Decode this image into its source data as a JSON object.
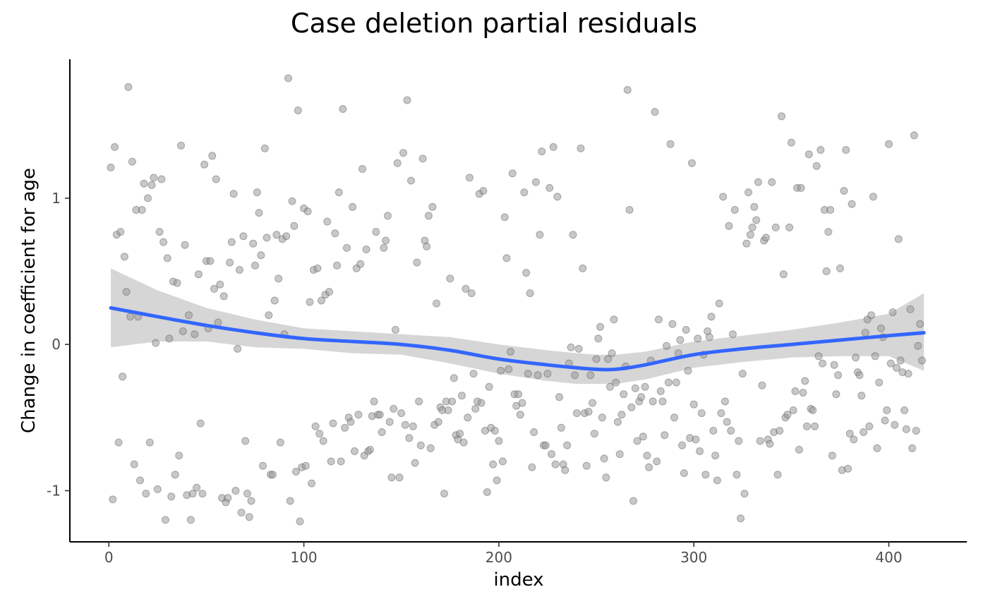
{
  "chart_data": {
    "type": "scatter",
    "title": "Case deletion partial residuals",
    "xlabel": "index",
    "ylabel": "Change in coefficient for age",
    "xlim": [
      -20,
      440
    ],
    "ylim": [
      -1.35,
      1.95
    ],
    "x_ticks": [
      0,
      100,
      200,
      300,
      400
    ],
    "y_ticks": [
      -1,
      0,
      1
    ],
    "x_tick_labels": [
      "0",
      "100",
      "200",
      "300",
      "400"
    ],
    "y_tick_labels": [
      "-1",
      "0",
      "1"
    ],
    "grid": false,
    "legend": "none",
    "point_color": "#808080",
    "smooth_color": "#3366FF",
    "band_color": "#999999",
    "points": [
      [
        1,
        1.21
      ],
      [
        2,
        -1.06
      ],
      [
        3,
        1.35
      ],
      [
        4,
        0.75
      ],
      [
        5,
        -0.67
      ],
      [
        6,
        0.77
      ],
      [
        7,
        -0.22
      ],
      [
        8,
        0.6
      ],
      [
        9,
        0.36
      ],
      [
        10,
        1.76
      ],
      [
        11,
        0.19
      ],
      [
        12,
        1.25
      ],
      [
        13,
        -0.82
      ],
      [
        14,
        0.92
      ],
      [
        15,
        0.19
      ],
      [
        16,
        -0.93
      ],
      [
        17,
        0.92
      ],
      [
        18,
        1.1
      ],
      [
        19,
        -1.02
      ],
      [
        20,
        1.0
      ],
      [
        21,
        -0.67
      ],
      [
        22,
        1.09
      ],
      [
        23,
        1.14
      ],
      [
        24,
        0.01
      ],
      [
        25,
        -0.99
      ],
      [
        26,
        0.77
      ],
      [
        27,
        1.13
      ],
      [
        28,
        0.7
      ],
      [
        29,
        -1.2
      ],
      [
        30,
        0.59
      ],
      [
        31,
        0.04
      ],
      [
        32,
        -1.04
      ],
      [
        33,
        0.43
      ],
      [
        34,
        -0.89
      ],
      [
        35,
        0.42
      ],
      [
        36,
        -0.76
      ],
      [
        37,
        1.36
      ],
      [
        38,
        0.09
      ],
      [
        39,
        0.68
      ],
      [
        40,
        -1.03
      ],
      [
        41,
        0.2
      ],
      [
        42,
        -1.2
      ],
      [
        43,
        -1.02
      ],
      [
        44,
        0.07
      ],
      [
        45,
        -0.98
      ],
      [
        46,
        0.48
      ],
      [
        47,
        -0.54
      ],
      [
        48,
        -1.02
      ],
      [
        49,
        1.23
      ],
      [
        50,
        0.57
      ],
      [
        51,
        0.11
      ],
      [
        52,
        0.57
      ],
      [
        53,
        1.29
      ],
      [
        54,
        0.38
      ],
      [
        55,
        1.13
      ],
      [
        56,
        0.15
      ],
      [
        57,
        0.41
      ],
      [
        58,
        -1.05
      ],
      [
        59,
        0.33
      ],
      [
        60,
        -1.08
      ],
      [
        61,
        -1.05
      ],
      [
        62,
        0.56
      ],
      [
        63,
        0.7
      ],
      [
        64,
        1.03
      ],
      [
        65,
        -1.0
      ],
      [
        66,
        -0.03
      ],
      [
        67,
        0.51
      ],
      [
        68,
        -1.15
      ],
      [
        69,
        0.74
      ],
      [
        70,
        -0.66
      ],
      [
        71,
        -1.02
      ],
      [
        72,
        -1.18
      ],
      [
        73,
        -1.07
      ],
      [
        74,
        0.69
      ],
      [
        75,
        0.54
      ],
      [
        76,
        1.04
      ],
      [
        77,
        0.9
      ],
      [
        78,
        0.61
      ],
      [
        79,
        -0.83
      ],
      [
        80,
        1.34
      ],
      [
        81,
        0.73
      ],
      [
        82,
        0.2
      ],
      [
        83,
        -0.89
      ],
      [
        84,
        -0.89
      ],
      [
        85,
        0.3
      ],
      [
        86,
        0.75
      ],
      [
        87,
        0.45
      ],
      [
        88,
        -0.67
      ],
      [
        89,
        0.72
      ],
      [
        90,
        0.07
      ],
      [
        91,
        0.74
      ],
      [
        92,
        1.82
      ],
      [
        93,
        -1.07
      ],
      [
        94,
        0.98
      ],
      [
        95,
        0.81
      ],
      [
        96,
        -0.87
      ],
      [
        97,
        1.6
      ],
      [
        98,
        -1.21
      ],
      [
        99,
        -0.84
      ],
      [
        100,
        0.93
      ],
      [
        101,
        -0.83
      ],
      [
        102,
        0.91
      ],
      [
        103,
        0.29
      ],
      [
        104,
        -0.95
      ],
      [
        105,
        0.51
      ],
      [
        106,
        -0.56
      ],
      [
        107,
        0.52
      ],
      [
        108,
        -0.61
      ],
      [
        109,
        0.3
      ],
      [
        110,
        -0.66
      ],
      [
        111,
        0.34
      ],
      [
        112,
        0.84
      ],
      [
        113,
        0.36
      ],
      [
        114,
        -0.8
      ],
      [
        115,
        -0.54
      ],
      [
        116,
        0.76
      ],
      [
        117,
        0.54
      ],
      [
        118,
        1.04
      ],
      [
        119,
        -0.8
      ],
      [
        120,
        1.61
      ],
      [
        121,
        -0.57
      ],
      [
        122,
        0.66
      ],
      [
        123,
        -0.5
      ],
      [
        124,
        -0.53
      ],
      [
        125,
        0.94
      ],
      [
        126,
        -0.73
      ],
      [
        127,
        0.52
      ],
      [
        128,
        -0.48
      ],
      [
        129,
        0.55
      ],
      [
        130,
        1.2
      ],
      [
        131,
        -0.76
      ],
      [
        132,
        0.65
      ],
      [
        133,
        -0.73
      ],
      [
        134,
        -0.72
      ],
      [
        135,
        -0.49
      ],
      [
        136,
        -0.39
      ],
      [
        137,
        0.77
      ],
      [
        138,
        -0.48
      ],
      [
        139,
        -0.48
      ],
      [
        140,
        -0.6
      ],
      [
        141,
        0.66
      ],
      [
        142,
        0.71
      ],
      [
        143,
        0.88
      ],
      [
        144,
        -0.53
      ],
      [
        145,
        -0.91
      ],
      [
        146,
        -0.44
      ],
      [
        147,
        0.1
      ],
      [
        148,
        1.24
      ],
      [
        149,
        -0.91
      ],
      [
        150,
        -0.47
      ],
      [
        151,
        1.31
      ],
      [
        152,
        -0.55
      ],
      [
        153,
        1.67
      ],
      [
        154,
        -0.64
      ],
      [
        155,
        1.12
      ],
      [
        156,
        -0.56
      ],
      [
        157,
        -0.81
      ],
      [
        158,
        0.56
      ],
      [
        159,
        -0.39
      ],
      [
        160,
        -0.69
      ],
      [
        161,
        1.27
      ],
      [
        162,
        0.71
      ],
      [
        163,
        0.67
      ],
      [
        164,
        0.88
      ],
      [
        165,
        -0.71
      ],
      [
        166,
        0.94
      ],
      [
        167,
        -0.55
      ],
      [
        168,
        0.28
      ],
      [
        169,
        -0.53
      ],
      [
        170,
        -0.43
      ],
      [
        171,
        -0.45
      ],
      [
        172,
        -1.02
      ],
      [
        173,
        -0.39
      ],
      [
        174,
        -0.45
      ],
      [
        175,
        0.45
      ],
      [
        176,
        -0.39
      ],
      [
        177,
        -0.23
      ],
      [
        178,
        -0.62
      ],
      [
        179,
        -0.65
      ],
      [
        180,
        -0.61
      ],
      [
        181,
        -0.35
      ],
      [
        182,
        -0.67
      ],
      [
        183,
        0.38
      ],
      [
        184,
        -0.5
      ],
      [
        185,
        1.14
      ],
      [
        186,
        0.35
      ],
      [
        187,
        -0.2
      ],
      [
        188,
        -0.44
      ],
      [
        189,
        -0.39
      ],
      [
        190,
        1.03
      ],
      [
        191,
        -0.4
      ],
      [
        192,
        1.05
      ],
      [
        193,
        -0.59
      ],
      [
        194,
        -1.01
      ],
      [
        195,
        -0.29
      ],
      [
        196,
        -0.57
      ],
      [
        197,
        -0.82
      ],
      [
        198,
        -0.59
      ],
      [
        199,
        -0.93
      ],
      [
        200,
        -0.66
      ],
      [
        201,
        -0.18
      ],
      [
        202,
        -0.8
      ],
      [
        203,
        0.87
      ],
      [
        204,
        0.59
      ],
      [
        205,
        -0.17
      ],
      [
        206,
        -0.05
      ],
      [
        207,
        1.17
      ],
      [
        208,
        -0.34
      ],
      [
        209,
        -0.42
      ],
      [
        210,
        -0.34
      ],
      [
        211,
        -0.48
      ],
      [
        212,
        -0.4
      ],
      [
        213,
        1.04
      ],
      [
        214,
        0.49
      ],
      [
        215,
        -0.2
      ],
      [
        216,
        0.35
      ],
      [
        217,
        -0.84
      ],
      [
        218,
        -0.6
      ],
      [
        219,
        1.11
      ],
      [
        220,
        -0.21
      ],
      [
        221,
        0.75
      ],
      [
        222,
        1.32
      ],
      [
        223,
        -0.69
      ],
      [
        224,
        -0.69
      ],
      [
        225,
        -0.2
      ],
      [
        226,
        1.07
      ],
      [
        227,
        -0.75
      ],
      [
        228,
        1.35
      ],
      [
        229,
        -0.82
      ],
      [
        230,
        1.01
      ],
      [
        231,
        -0.36
      ],
      [
        232,
        -0.57
      ],
      [
        233,
        -0.82
      ],
      [
        234,
        -0.86
      ],
      [
        235,
        -0.69
      ],
      [
        236,
        -0.13
      ],
      [
        237,
        -0.02
      ],
      [
        238,
        0.75
      ],
      [
        239,
        -0.21
      ],
      [
        240,
        -0.47
      ],
      [
        241,
        -0.03
      ],
      [
        242,
        1.34
      ],
      [
        243,
        0.52
      ],
      [
        244,
        -0.47
      ],
      [
        245,
        -0.83
      ],
      [
        246,
        -0.46
      ],
      [
        247,
        -0.21
      ],
      [
        248,
        -0.4
      ],
      [
        249,
        -0.61
      ],
      [
        250,
        -0.1
      ],
      [
        251,
        0.04
      ],
      [
        252,
        0.12
      ],
      [
        253,
        -0.5
      ],
      [
        254,
        -0.78
      ],
      [
        255,
        -0.91
      ],
      [
        256,
        -0.1
      ],
      [
        257,
        -0.29
      ],
      [
        258,
        -0.06
      ],
      [
        259,
        0.17
      ],
      [
        260,
        -0.26
      ],
      [
        261,
        -0.53
      ],
      [
        262,
        -0.75
      ],
      [
        263,
        -0.48
      ],
      [
        264,
        -0.34
      ],
      [
        265,
        -0.15
      ],
      [
        266,
        1.74
      ],
      [
        267,
        0.92
      ],
      [
        268,
        -0.43
      ],
      [
        269,
        -1.07
      ],
      [
        270,
        -0.3
      ],
      [
        271,
        -0.66
      ],
      [
        272,
        -0.39
      ],
      [
        273,
        -0.36
      ],
      [
        274,
        -0.63
      ],
      [
        275,
        -0.29
      ],
      [
        276,
        -0.76
      ],
      [
        277,
        -0.84
      ],
      [
        278,
        -0.11
      ],
      [
        279,
        -0.39
      ],
      [
        280,
        1.59
      ],
      [
        281,
        -0.8
      ],
      [
        282,
        0.17
      ],
      [
        283,
        -0.32
      ],
      [
        284,
        -0.39
      ],
      [
        285,
        -0.62
      ],
      [
        286,
        -0.01
      ],
      [
        287,
        -0.26
      ],
      [
        288,
        1.37
      ],
      [
        289,
        0.14
      ],
      [
        290,
        -0.5
      ],
      [
        291,
        -0.26
      ],
      [
        292,
        -0.06
      ],
      [
        293,
        0.03
      ],
      [
        294,
        -0.69
      ],
      [
        295,
        -0.88
      ],
      [
        296,
        0.1
      ],
      [
        297,
        -0.18
      ],
      [
        298,
        -0.64
      ],
      [
        299,
        1.24
      ],
      [
        300,
        -0.41
      ],
      [
        301,
        -0.65
      ],
      [
        302,
        0.04
      ],
      [
        303,
        -0.73
      ],
      [
        304,
        -0.47
      ],
      [
        305,
        -0.07
      ],
      [
        306,
        -0.89
      ],
      [
        307,
        0.09
      ],
      [
        308,
        0.05
      ],
      [
        309,
        0.19
      ],
      [
        310,
        -0.59
      ],
      [
        311,
        -0.76
      ],
      [
        312,
        -0.93
      ],
      [
        313,
        0.28
      ],
      [
        314,
        -0.47
      ],
      [
        315,
        1.01
      ],
      [
        316,
        -0.39
      ],
      [
        317,
        -0.53
      ],
      [
        318,
        0.81
      ],
      [
        319,
        -0.59
      ],
      [
        320,
        0.07
      ],
      [
        321,
        0.92
      ],
      [
        322,
        -0.89
      ],
      [
        323,
        -0.66
      ],
      [
        324,
        -1.19
      ],
      [
        325,
        -0.2
      ],
      [
        326,
        -1.02
      ],
      [
        327,
        0.69
      ],
      [
        328,
        1.04
      ],
      [
        329,
        0.75
      ],
      [
        330,
        0.8
      ],
      [
        331,
        0.94
      ],
      [
        332,
        0.85
      ],
      [
        333,
        1.11
      ],
      [
        334,
        -0.66
      ],
      [
        335,
        -0.28
      ],
      [
        336,
        0.71
      ],
      [
        337,
        0.73
      ],
      [
        338,
        -0.65
      ],
      [
        339,
        -0.68
      ],
      [
        340,
        1.11
      ],
      [
        341,
        -0.6
      ],
      [
        342,
        0.8
      ],
      [
        343,
        -0.89
      ],
      [
        344,
        -0.59
      ],
      [
        345,
        1.56
      ],
      [
        346,
        0.48
      ],
      [
        347,
        -0.5
      ],
      [
        348,
        -0.48
      ],
      [
        349,
        0.8
      ],
      [
        350,
        1.38
      ],
      [
        351,
        -0.45
      ],
      [
        352,
        -0.32
      ],
      [
        353,
        1.07
      ],
      [
        354,
        -0.72
      ],
      [
        355,
        1.07
      ],
      [
        356,
        -0.33
      ],
      [
        357,
        -0.25
      ],
      [
        358,
        -0.56
      ],
      [
        359,
        1.3
      ],
      [
        360,
        -0.44
      ],
      [
        361,
        -0.45
      ],
      [
        362,
        -0.56
      ],
      [
        363,
        1.22
      ],
      [
        364,
        -0.08
      ],
      [
        365,
        1.33
      ],
      [
        366,
        -0.13
      ],
      [
        367,
        0.92
      ],
      [
        368,
        0.5
      ],
      [
        369,
        0.77
      ],
      [
        370,
        0.92
      ],
      [
        371,
        -0.76
      ],
      [
        372,
        -0.14
      ],
      [
        373,
        -0.34
      ],
      [
        374,
        -0.21
      ],
      [
        375,
        0.52
      ],
      [
        376,
        -0.86
      ],
      [
        377,
        1.05
      ],
      [
        378,
        1.33
      ],
      [
        379,
        -0.85
      ],
      [
        380,
        -0.61
      ],
      [
        381,
        0.96
      ],
      [
        382,
        -0.65
      ],
      [
        383,
        -0.09
      ],
      [
        384,
        -0.19
      ],
      [
        385,
        -0.21
      ],
      [
        386,
        -0.35
      ],
      [
        387,
        -0.6
      ],
      [
        388,
        0.08
      ],
      [
        389,
        0.17
      ],
      [
        390,
        -0.56
      ],
      [
        391,
        0.2
      ],
      [
        392,
        1.01
      ],
      [
        393,
        -0.08
      ],
      [
        394,
        -0.71
      ],
      [
        395,
        -0.26
      ],
      [
        396,
        0.11
      ],
      [
        397,
        0.05
      ],
      [
        398,
        -0.52
      ],
      [
        399,
        -0.45
      ],
      [
        400,
        1.37
      ],
      [
        401,
        -0.13
      ],
      [
        402,
        0.22
      ],
      [
        403,
        -0.55
      ],
      [
        404,
        -0.16
      ],
      [
        405,
        0.72
      ],
      [
        406,
        -0.11
      ],
      [
        407,
        -0.19
      ],
      [
        408,
        -0.45
      ],
      [
        409,
        -0.58
      ],
      [
        410,
        -0.2
      ],
      [
        411,
        0.24
      ],
      [
        412,
        -0.71
      ],
      [
        413,
        1.43
      ],
      [
        414,
        -0.59
      ],
      [
        415,
        -0.01
      ],
      [
        416,
        0.14
      ],
      [
        417,
        -0.11
      ]
    ],
    "smooth": {
      "x": [
        1,
        25,
        50,
        75,
        100,
        125,
        150,
        175,
        200,
        225,
        240,
        250,
        260,
        275,
        300,
        325,
        350,
        375,
        400,
        418
      ],
      "y": [
        0.25,
        0.19,
        0.13,
        0.08,
        0.04,
        0.02,
        0.0,
        -0.04,
        -0.1,
        -0.14,
        -0.16,
        -0.17,
        -0.17,
        -0.14,
        -0.07,
        -0.03,
        0.0,
        0.03,
        0.06,
        0.08
      ],
      "lower": [
        -0.02,
        0.02,
        0.02,
        -0.02,
        -0.03,
        -0.06,
        -0.07,
        -0.13,
        -0.2,
        -0.25,
        -0.27,
        -0.27,
        -0.27,
        -0.24,
        -0.16,
        -0.12,
        -0.09,
        -0.08,
        -0.08,
        -0.18
      ],
      "upper": [
        0.52,
        0.37,
        0.25,
        0.17,
        0.11,
        0.09,
        0.07,
        0.05,
        0.0,
        -0.04,
        -0.06,
        -0.07,
        -0.07,
        -0.05,
        0.02,
        0.06,
        0.1,
        0.15,
        0.21,
        0.35
      ]
    }
  }
}
